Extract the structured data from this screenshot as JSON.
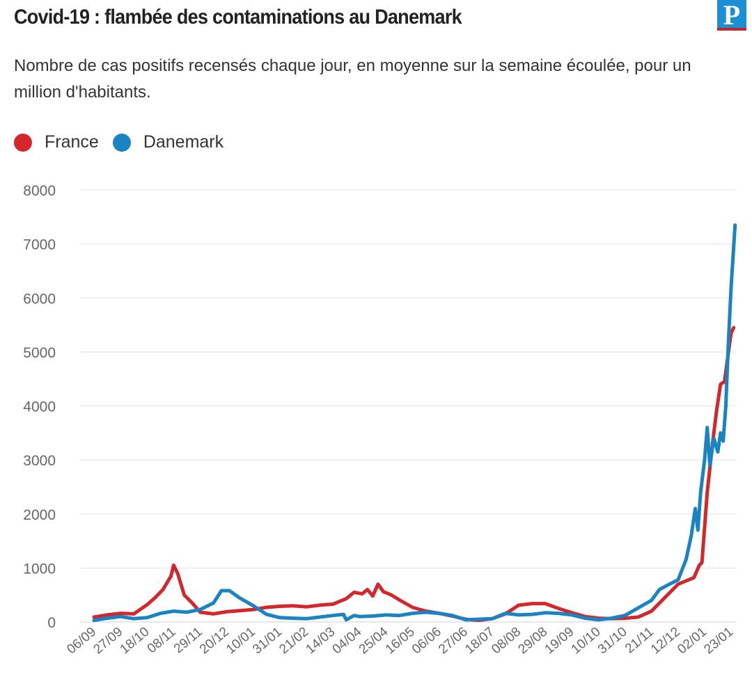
{
  "header": {
    "title": "Covid-19 : flambée des contaminations au Danemark",
    "logo_letter": "P",
    "subtitle": "Nombre de cas positifs recensés chaque jour, en moyenne sur la semaine écoulée, pour un million d'habitants."
  },
  "chart_data": {
    "type": "line",
    "title": "Covid-19 : flambée des contaminations au Danemark",
    "subtitle": "Nombre de cas positifs recensés chaque jour, en moyenne sur la semaine écoulée, pour un million d'habitants.",
    "xlabel": "",
    "ylabel": "",
    "ylim": [
      0,
      8000
    ],
    "yticks": [
      0,
      1000,
      2000,
      3000,
      4000,
      5000,
      6000,
      7000,
      8000
    ],
    "ytick_labels": [
      "0",
      "1000",
      "2000",
      "3000",
      "4000",
      "5000",
      "6000",
      "7000",
      "8000"
    ],
    "categories": [
      "06/09",
      "27/09",
      "18/10",
      "08/11",
      "29/11",
      "20/12",
      "10/01",
      "31/01",
      "21/02",
      "14/03",
      "04/04",
      "25/04",
      "16/05",
      "06/06",
      "27/06",
      "18/07",
      "08/08",
      "29/08",
      "19/09",
      "10/10",
      "31/10",
      "21/11",
      "12/12",
      "02/01",
      "23/01"
    ],
    "legend_position": "top-left",
    "grid": true,
    "series": [
      {
        "name": "France",
        "color": "#d3272c",
        "points": [
          [
            0,
            90
          ],
          [
            0.5,
            130
          ],
          [
            1.0,
            160
          ],
          [
            1.5,
            150
          ],
          [
            2.0,
            320
          ],
          [
            2.3,
            450
          ],
          [
            2.6,
            600
          ],
          [
            2.9,
            850
          ],
          [
            3.0,
            1050
          ],
          [
            3.15,
            900
          ],
          [
            3.4,
            500
          ],
          [
            3.7,
            350
          ],
          [
            4.0,
            180
          ],
          [
            4.5,
            150
          ],
          [
            5.0,
            190
          ],
          [
            5.5,
            210
          ],
          [
            6.0,
            230
          ],
          [
            6.5,
            270
          ],
          [
            7.0,
            290
          ],
          [
            7.5,
            300
          ],
          [
            8.0,
            280
          ],
          [
            8.5,
            310
          ],
          [
            9.0,
            330
          ],
          [
            9.5,
            430
          ],
          [
            9.8,
            550
          ],
          [
            10.1,
            520
          ],
          [
            10.3,
            600
          ],
          [
            10.5,
            480
          ],
          [
            10.7,
            700
          ],
          [
            10.9,
            560
          ],
          [
            11.2,
            500
          ],
          [
            11.6,
            380
          ],
          [
            12.0,
            270
          ],
          [
            12.5,
            200
          ],
          [
            13.0,
            160
          ],
          [
            13.5,
            110
          ],
          [
            14.0,
            50
          ],
          [
            14.5,
            30
          ],
          [
            15.0,
            60
          ],
          [
            15.5,
            150
          ],
          [
            16.0,
            310
          ],
          [
            16.5,
            340
          ],
          [
            17.0,
            340
          ],
          [
            17.5,
            250
          ],
          [
            18.0,
            170
          ],
          [
            18.5,
            100
          ],
          [
            19.0,
            70
          ],
          [
            19.5,
            60
          ],
          [
            20.0,
            70
          ],
          [
            20.5,
            90
          ],
          [
            21.0,
            200
          ],
          [
            21.5,
            450
          ],
          [
            22.0,
            700
          ],
          [
            22.3,
            760
          ],
          [
            22.6,
            820
          ],
          [
            22.8,
            1050
          ],
          [
            22.9,
            1100
          ],
          [
            23.1,
            2400
          ],
          [
            23.3,
            3300
          ],
          [
            23.45,
            3900
          ],
          [
            23.6,
            4400
          ],
          [
            23.75,
            4450
          ],
          [
            23.9,
            5000
          ],
          [
            24.0,
            5350
          ],
          [
            24.1,
            5450
          ]
        ]
      },
      {
        "name": "Danemark",
        "color": "#1a83c4",
        "points": [
          [
            0,
            30
          ],
          [
            0.5,
            70
          ],
          [
            1.0,
            100
          ],
          [
            1.5,
            60
          ],
          [
            2.0,
            80
          ],
          [
            2.5,
            160
          ],
          [
            3.0,
            200
          ],
          [
            3.5,
            180
          ],
          [
            4.0,
            230
          ],
          [
            4.5,
            350
          ],
          [
            4.8,
            580
          ],
          [
            5.1,
            580
          ],
          [
            5.5,
            440
          ],
          [
            6.0,
            300
          ],
          [
            6.5,
            140
          ],
          [
            7.0,
            80
          ],
          [
            7.5,
            70
          ],
          [
            8.0,
            60
          ],
          [
            8.5,
            90
          ],
          [
            9.0,
            120
          ],
          [
            9.4,
            140
          ],
          [
            9.5,
            40
          ],
          [
            9.8,
            120
          ],
          [
            10.0,
            100
          ],
          [
            10.5,
            110
          ],
          [
            11.0,
            130
          ],
          [
            11.5,
            120
          ],
          [
            12.0,
            160
          ],
          [
            12.5,
            180
          ],
          [
            13.0,
            160
          ],
          [
            13.5,
            120
          ],
          [
            14.0,
            40
          ],
          [
            14.5,
            50
          ],
          [
            15.0,
            60
          ],
          [
            15.5,
            160
          ],
          [
            16.0,
            130
          ],
          [
            16.5,
            140
          ],
          [
            17.0,
            170
          ],
          [
            17.5,
            160
          ],
          [
            18.0,
            130
          ],
          [
            18.5,
            70
          ],
          [
            19.0,
            40
          ],
          [
            19.5,
            70
          ],
          [
            20.0,
            120
          ],
          [
            20.5,
            260
          ],
          [
            21.0,
            400
          ],
          [
            21.3,
            600
          ],
          [
            21.6,
            680
          ],
          [
            22.0,
            780
          ],
          [
            22.3,
            1150
          ],
          [
            22.5,
            1600
          ],
          [
            22.65,
            2100
          ],
          [
            22.75,
            1700
          ],
          [
            22.85,
            2400
          ],
          [
            23.0,
            3000
          ],
          [
            23.1,
            3600
          ],
          [
            23.2,
            2900
          ],
          [
            23.35,
            3400
          ],
          [
            23.5,
            3150
          ],
          [
            23.6,
            3500
          ],
          [
            23.7,
            3350
          ],
          [
            23.8,
            4000
          ],
          [
            23.9,
            5200
          ],
          [
            24.0,
            6200
          ],
          [
            24.15,
            7350
          ]
        ]
      }
    ]
  }
}
